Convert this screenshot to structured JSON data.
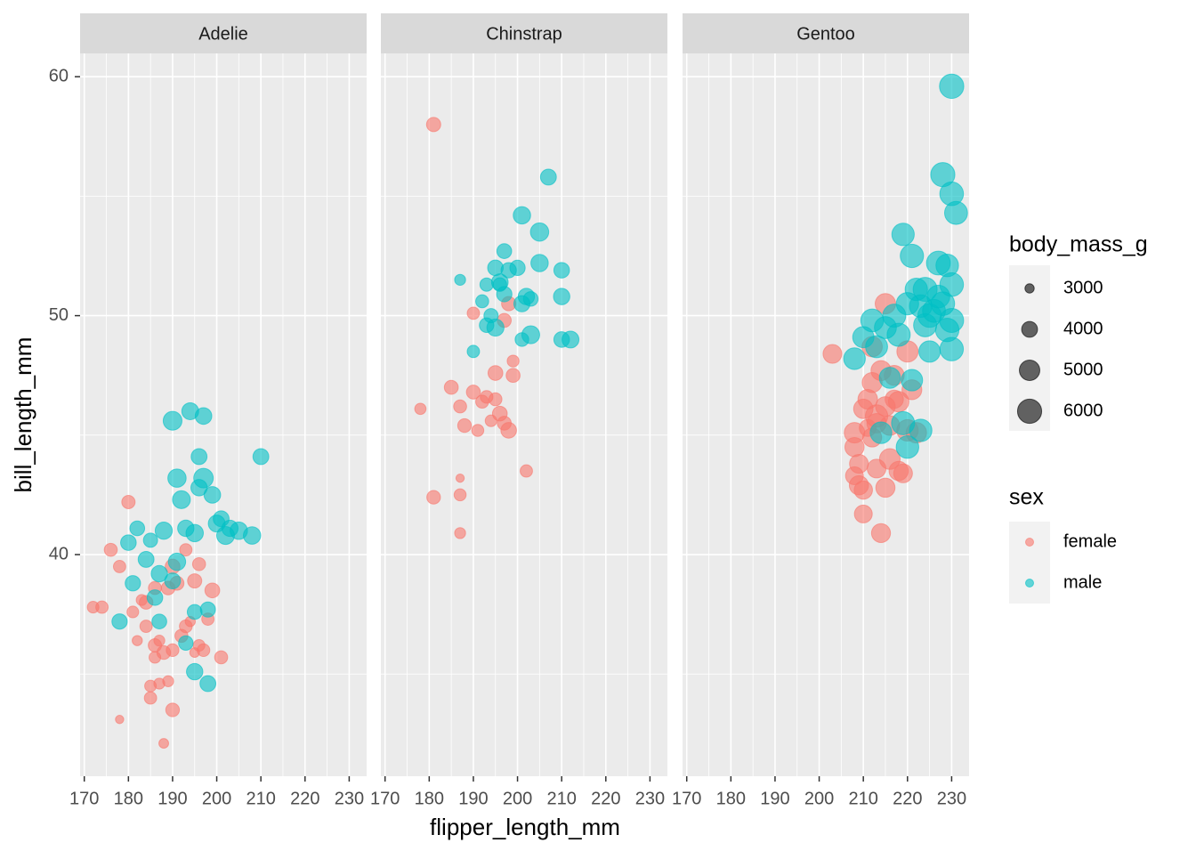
{
  "chart_data": {
    "type": "scatter",
    "xlabel": "flipper_length_mm",
    "ylabel": "bill_length_mm",
    "xlim": [
      169.05,
      233.95
    ],
    "ylim": [
      30.725,
      60.975
    ],
    "xticks": [
      170,
      180,
      190,
      200,
      210,
      220,
      230
    ],
    "yticks": [
      40,
      50,
      60
    ],
    "xminor": [
      175,
      185,
      195,
      205,
      215,
      225
    ],
    "yminor": [
      35,
      45,
      55
    ],
    "size_legend": {
      "title": "body_mass_g",
      "values": [
        3000,
        4000,
        5000,
        6000
      ]
    },
    "color_legend_title": "sex",
    "facets": [
      {
        "title": "Adelie",
        "series": [
          {
            "name": "female",
            "color": "#F8766D",
            "x": [
              172,
              174,
              176,
              178,
              178,
              180,
              181,
              182,
              183,
              184,
              185,
              185,
              186,
              186,
              187,
              187,
              188,
              188,
              189,
              189,
              190,
              190,
              191,
              192,
              193,
              193,
              195,
              195,
              196,
              196,
              197,
              198,
              199,
              201,
              186,
              184,
              190,
              194
            ],
            "values": [
              37.8,
              37.8,
              40.2,
              39.5,
              33.1,
              42.2,
              37.6,
              36.4,
              38.1,
              37.0,
              34.5,
              34.0,
              35.7,
              36.2,
              36.4,
              34.6,
              32.1,
              35.9,
              34.7,
              38.6,
              33.5,
              36.0,
              38.8,
              36.6,
              37.0,
              40.2,
              35.9,
              38.9,
              36.2,
              39.6,
              36.0,
              37.3,
              38.5,
              35.7,
              38.6,
              38.0,
              39.5,
              37.2
            ],
            "sizes": [
              3300,
              3400,
              3500,
              3400,
              2900,
              3550,
              3300,
              3100,
              3200,
              3400,
              3300,
              3400,
              3300,
              3550,
              3200,
              3200,
              3050,
              3600,
              3200,
              3600,
              3600,
              3450,
              3650,
              3500,
              3475,
              3400,
              3050,
              3700,
              3300,
              3500,
              3450,
              3400,
              3800,
              3500,
              3500,
              3600,
              3800,
              3100
            ]
          },
          {
            "name": "male",
            "color": "#00BFC4",
            "x": [
              180,
              181,
              182,
              184,
              185,
              186,
              187,
              188,
              190,
              190,
              191,
              191,
              192,
              193,
              194,
              195,
              195,
              196,
              196,
              197,
              197,
              198,
              198,
              199,
              200,
              201,
              202,
              203,
              205,
              208,
              210,
              187,
              178,
              193,
              195
            ],
            "values": [
              40.5,
              38.8,
              41.1,
              39.8,
              40.6,
              38.2,
              39.2,
              41.0,
              38.9,
              45.6,
              39.7,
              43.2,
              42.3,
              41.1,
              46.0,
              40.9,
              37.6,
              42.8,
              44.1,
              45.8,
              43.2,
              34.6,
              37.7,
              42.5,
              41.3,
              41.5,
              40.8,
              41.1,
              41.0,
              40.8,
              44.1,
              37.2,
              37.2,
              36.3,
              35.1
            ],
            "sizes": [
              3950,
              3900,
              3800,
              4000,
              3700,
              3950,
              4100,
              4250,
              4000,
              4600,
              4300,
              4500,
              4400,
              4100,
              4200,
              4300,
              3800,
              4100,
              4000,
              4150,
              4775,
              4000,
              3850,
              4150,
              4200,
              4000,
              4400,
              4075,
              4300,
              4300,
              4000,
              3800,
              3900,
              3750,
              4100
            ]
          }
        ]
      },
      {
        "title": "Chinstrap",
        "series": [
          {
            "name": "female",
            "color": "#F8766D",
            "x": [
              178,
              181,
              181,
              185,
              187,
              187,
              187,
              187,
              188,
              190,
              190,
              191,
              192,
              193,
              194,
              195,
              195,
              196,
              197,
              198,
              198,
              199,
              199,
              202,
              197
            ],
            "values": [
              46.1,
              58.0,
              42.4,
              47.0,
              42.5,
              43.2,
              40.9,
              46.2,
              45.4,
              46.8,
              50.1,
              45.2,
              46.4,
              46.6,
              45.6,
              46.5,
              47.6,
              45.9,
              45.5,
              50.5,
              45.2,
              47.5,
              48.1,
              43.5,
              49.8
            ],
            "sizes": [
              3250,
              3700,
              3600,
              3650,
              3350,
              2900,
              3200,
              3500,
              3600,
              3650,
              3400,
              3350,
              3500,
              3450,
              3300,
              3500,
              3800,
              3800,
              3650,
              3700,
              3950,
              3650,
              3325,
              3400,
              3650
            ]
          },
          {
            "name": "male",
            "color": "#00BFC4",
            "x": [
              187,
              190,
              192,
              193,
              193,
              194,
              195,
              195,
              196,
              196,
              197,
              197,
              198,
              200,
              201,
              201,
              201,
              202,
              203,
              203,
              205,
              205,
              207,
              210,
              210,
              210,
              212
            ],
            "values": [
              51.5,
              48.5,
              50.6,
              51.3,
              49.6,
              50.0,
              52.0,
              49.5,
              51.4,
              51.3,
              52.7,
              50.9,
              51.9,
              52.0,
              50.5,
              54.2,
              49.0,
              50.8,
              50.7,
              49.2,
              53.5,
              52.2,
              55.8,
              50.8,
              51.9,
              49.0,
              49.0
            ],
            "sizes": [
              3200,
              3400,
              3500,
              3550,
              3750,
              3700,
              3950,
              4250,
              4150,
              3600,
              3800,
              3900,
              3900,
              3900,
              4050,
              4300,
              3600,
              4100,
              3775,
              4400,
              4500,
              4300,
              4000,
              4100,
              3950,
              3950,
              4200
            ]
          }
        ]
      },
      {
        "title": "Gentoo",
        "series": [
          {
            "name": "female",
            "color": "#F8766D",
            "x": [
              203,
              208,
              208,
              208,
              209,
              209,
              210,
              210,
              210,
              211,
              211,
              212,
              212,
              212,
              213,
              213,
              214,
              214,
              215,
              215,
              215,
              216,
              216,
              217,
              217,
              218,
              219,
              220,
              220,
              221,
              222,
              218,
              213
            ],
            "values": [
              48.4,
              44.5,
              43.3,
              45.1,
              42.9,
              43.8,
              46.1,
              42.7,
              41.7,
              45.3,
              46.5,
              44.9,
              48.7,
              47.2,
              45.5,
              43.6,
              40.9,
              47.7,
              46.2,
              42.8,
              50.5,
              45.4,
              44.0,
              47.5,
              46.5,
              43.5,
              43.4,
              48.5,
              45.2,
              46.9,
              45.1,
              46.4,
              45.8
            ],
            "sizes": [
              4600,
              4700,
              4400,
              5000,
              4700,
              4600,
              4750,
              4500,
              4400,
              4200,
              4800,
              4650,
              4950,
              4875,
              4750,
              4600,
              4650,
              4900,
              4800,
              4700,
              5000,
              4800,
              5050,
              4875,
              4500,
              4700,
              4600,
              5200,
              5250,
              4850,
              5000,
              5000,
              5500
            ]
          },
          {
            "name": "male",
            "color": "#00BFC4",
            "x": [
              208,
              210,
              212,
              213,
              214,
              215,
              216,
              217,
              218,
              219,
              219,
              220,
              220,
              221,
              221,
              222,
              223,
              223,
              224,
              224,
              225,
              226,
              227,
              228,
              228,
              229,
              229,
              230,
              230,
              230,
              230,
              230,
              231,
              225,
              227
            ],
            "values": [
              48.2,
              49.1,
              49.8,
              48.7,
              45.1,
              49.5,
              47.4,
              50.0,
              49.2,
              53.4,
              45.5,
              44.5,
              50.5,
              52.5,
              47.3,
              51.1,
              45.2,
              50.4,
              49.6,
              51.1,
              50.0,
              50.2,
              52.2,
              55.9,
              50.5,
              52.1,
              49.4,
              59.6,
              55.1,
              51.3,
              48.6,
              49.8,
              54.3,
              48.5,
              50.8
            ],
            "sizes": [
              5300,
              5200,
              5600,
              5400,
              5300,
              5400,
              5150,
              5700,
              5700,
              5500,
              5700,
              5550,
              5500,
              5750,
              5250,
              5500,
              5500,
              5550,
              5700,
              5950,
              5800,
              5650,
              5900,
              6000,
              5850,
              5550,
              5800,
              6050,
              5850,
              5850,
              5800,
              5950,
              5650,
              5250,
              5600
            ]
          }
        ]
      }
    ]
  }
}
